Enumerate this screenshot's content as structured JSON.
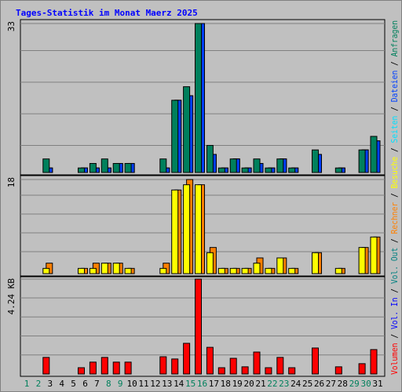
{
  "legend_separator": " / ",
  "chart_data": [
    {
      "type": "bar",
      "title": "Tages-Statistik im Monat Maerz 2025",
      "ylim": [
        0,
        33
      ],
      "yticks": [
        33
      ],
      "grid_lines": [
        6,
        13,
        20,
        27
      ],
      "series": [
        {
          "name": "Seiten",
          "color": "#00e0ff",
          "values": [
            0,
            0,
            1,
            0,
            0,
            1,
            1,
            1,
            2,
            2,
            0,
            0,
            1,
            16,
            17,
            33,
            4,
            1,
            3,
            1,
            2,
            1,
            3,
            1,
            0,
            4,
            0,
            1,
            0,
            5,
            7
          ]
        },
        {
          "name": "Dateien",
          "color": "#0040ff",
          "values": [
            0,
            0,
            1,
            0,
            0,
            1,
            1,
            1,
            2,
            2,
            0,
            0,
            1,
            16,
            17,
            33,
            4,
            1,
            3,
            1,
            2,
            1,
            3,
            1,
            0,
            4,
            0,
            1,
            0,
            5,
            7
          ]
        },
        {
          "name": "Anfragen",
          "color": "#00805c",
          "values": [
            0,
            0,
            3,
            0,
            0,
            1,
            2,
            3,
            2,
            2,
            0,
            0,
            3,
            16,
            19,
            33,
            6,
            1,
            3,
            1,
            3,
            1,
            3,
            1,
            0,
            5,
            0,
            1,
            0,
            5,
            8
          ]
        }
      ]
    },
    {
      "type": "bar",
      "ylim": [
        0,
        18
      ],
      "yticks": [
        18
      ],
      "grid_lines": [
        4.2,
        7.8,
        11.4,
        15
      ],
      "series": [
        {
          "name": "Rechner",
          "color": "#ff8000",
          "values": [
            0,
            0,
            2,
            0,
            0,
            1,
            2,
            2,
            2,
            1,
            0,
            0,
            2,
            16,
            18,
            17,
            5,
            1,
            1,
            1,
            3,
            1,
            3,
            1,
            0,
            4,
            0,
            1,
            0,
            5,
            7
          ]
        },
        {
          "name": "Besuche",
          "color": "#ffff00",
          "values": [
            0,
            0,
            1,
            0,
            0,
            1,
            1,
            2,
            2,
            1,
            0,
            0,
            1,
            16,
            17,
            17,
            4,
            1,
            1,
            1,
            2,
            1,
            3,
            1,
            0,
            4,
            0,
            1,
            0,
            5,
            7
          ]
        }
      ]
    },
    {
      "type": "bar",
      "categories": [
        "1",
        "2",
        "3",
        "4",
        "5",
        "6",
        "7",
        "8",
        "9",
        "10",
        "11",
        "12",
        "13",
        "14",
        "15",
        "16",
        "17",
        "18",
        "19",
        "20",
        "21",
        "22",
        "23",
        "24",
        "25",
        "26",
        "27",
        "28",
        "29",
        "30",
        "31"
      ],
      "highlight": {
        "color": "#00805c",
        "categories": [
          0,
          1,
          7,
          8,
          14,
          15,
          21,
          22,
          28,
          29
        ]
      },
      "ylim": [
        0,
        4.24
      ],
      "yticks": [
        {
          "value": 4.24,
          "label": "4.24 KB"
        }
      ],
      "grid_lines": [
        0.85,
        1.7,
        2.55,
        3.4
      ],
      "series": [
        {
          "name": "Volumen",
          "color": "#ff0000",
          "values": [
            0,
            0,
            0.74,
            0,
            0,
            0.28,
            0.53,
            0.74,
            0.53,
            0.53,
            0,
            0,
            0.77,
            0.67,
            1.37,
            4.24,
            1.19,
            0.28,
            0.7,
            0.32,
            0.98,
            0.28,
            0.74,
            0.28,
            0,
            1.16,
            0,
            0.32,
            0,
            0.46,
            1.09
          ]
        },
        {
          "name": "Vol. In",
          "color": "#0000ff"
        },
        {
          "name": "Vol. Out",
          "color": "#008080"
        }
      ]
    }
  ]
}
